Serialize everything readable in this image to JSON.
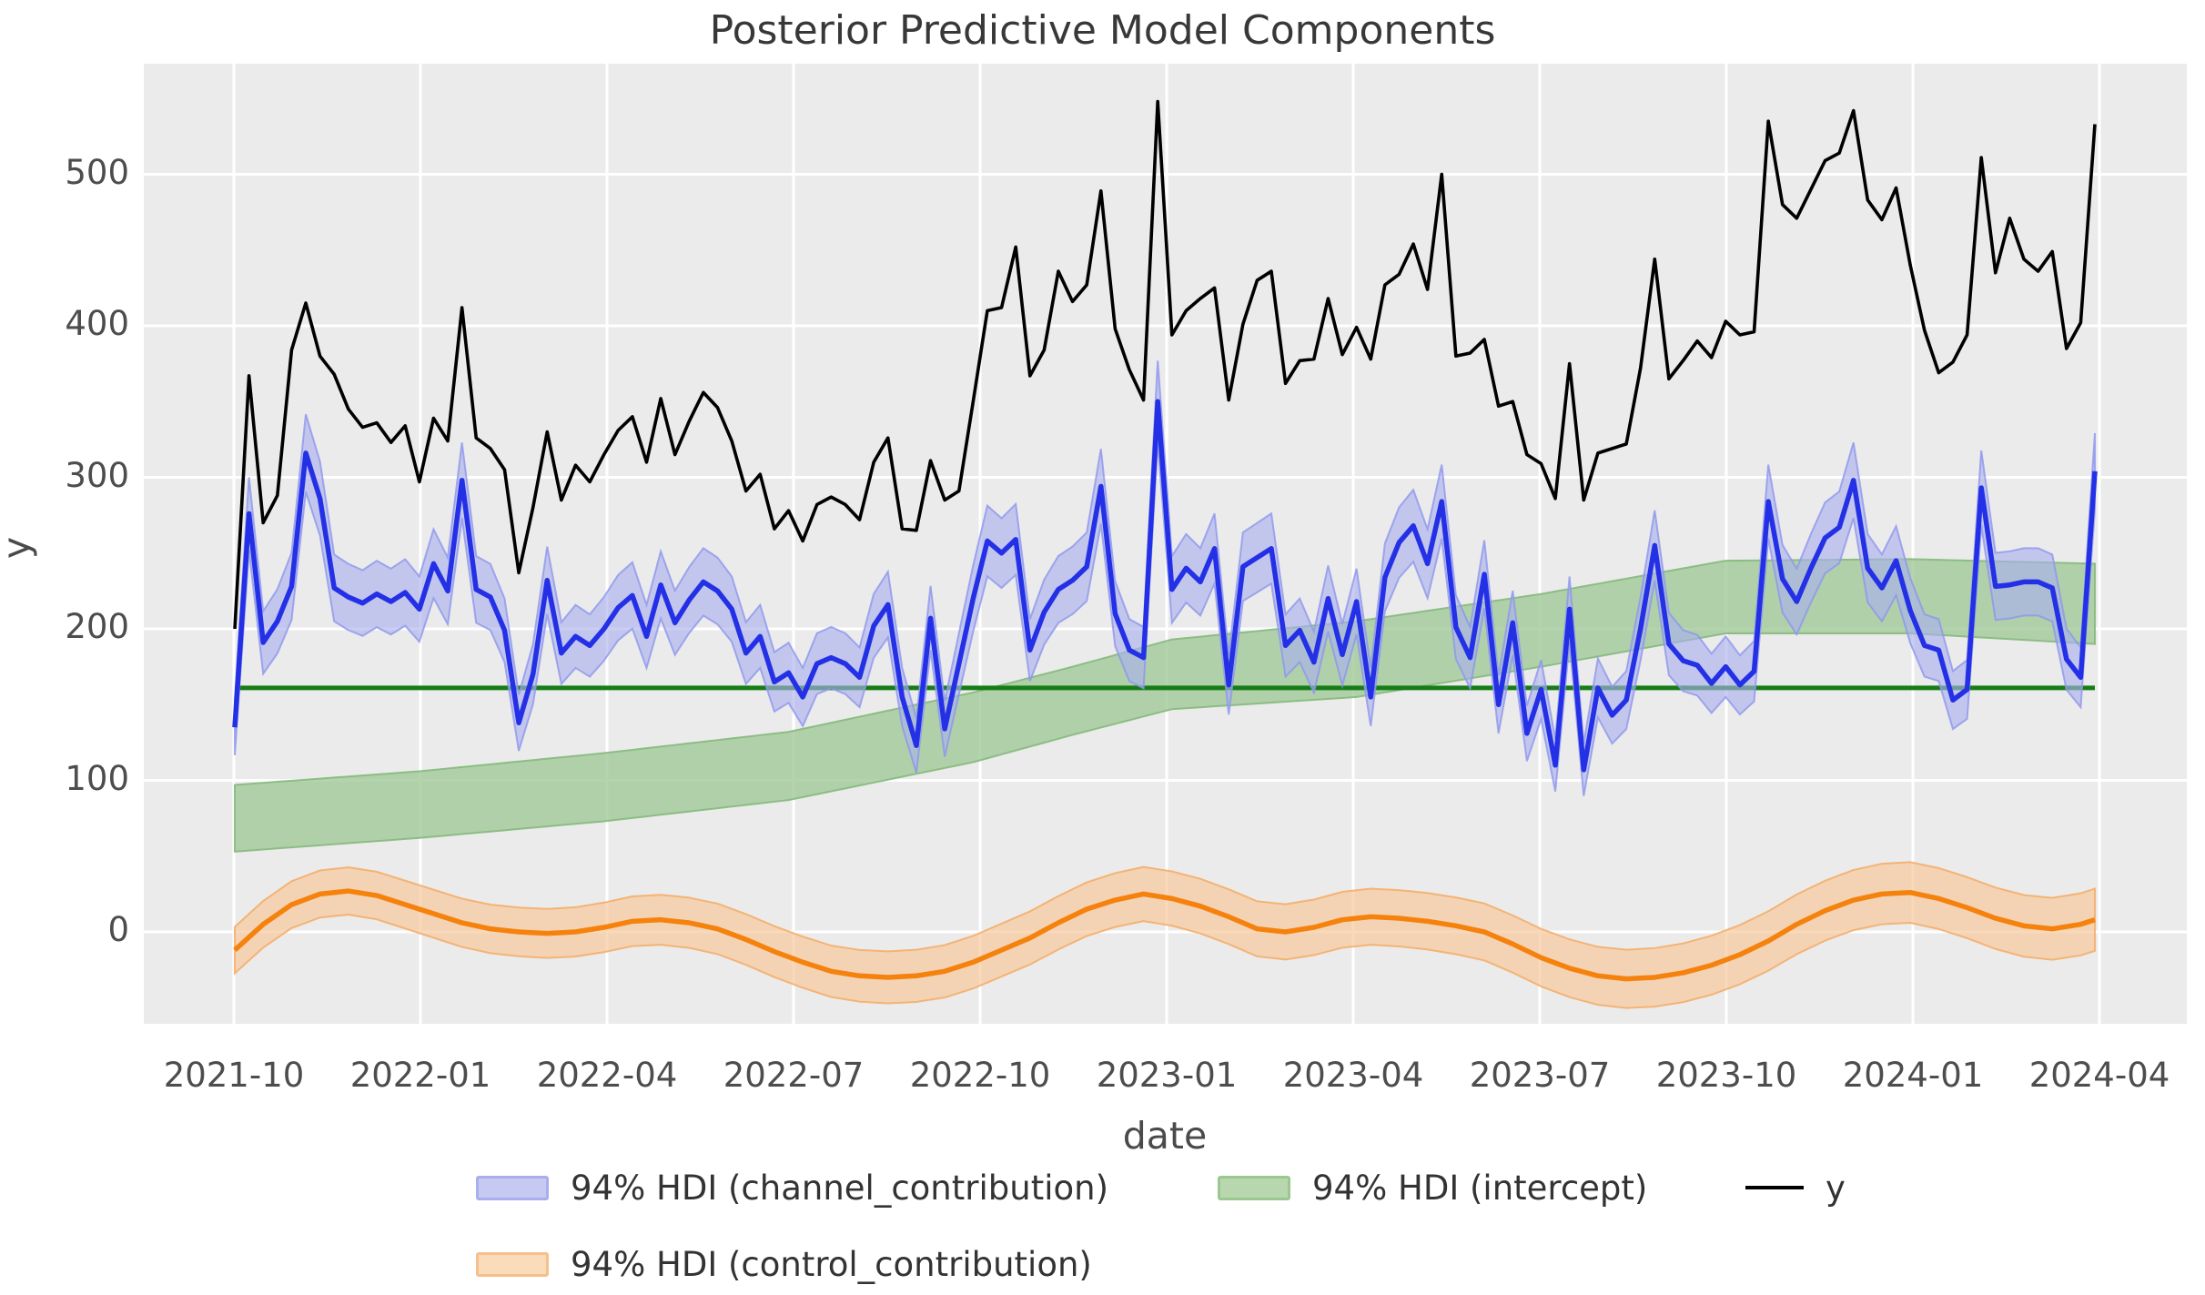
{
  "title": "Posterior Predictive Model Components",
  "xlabel": "date",
  "ylabel": "y",
  "legend": {
    "items": [
      {
        "label": "94% HDI (channel_contribution)",
        "swatch": "blue"
      },
      {
        "label": "94% HDI (control_contribution)",
        "swatch": "orange"
      },
      {
        "label": "94% HDI (intercept)",
        "swatch": "green"
      },
      {
        "label": "y",
        "swatch": "line"
      }
    ]
  },
  "colors": {
    "plot_bg": "#ebebeb",
    "grid": "#ffffff",
    "y_line": "#000000",
    "channel_line": "#2430e6",
    "channel_band_fill": "#aab0ef",
    "channel_band_edge": "#8d96ec",
    "intercept_line": "#167d16",
    "intercept_band_fill": "#9fc897",
    "intercept_band_edge": "#85b97c",
    "control_line": "#f5820d",
    "control_band_fill": "#f8c79a",
    "control_band_edge": "#f3ab66"
  },
  "axes": {
    "x_tick_labels": [
      "2021-10",
      "2022-01",
      "2022-04",
      "2022-07",
      "2022-10",
      "2023-01",
      "2023-04",
      "2023-07",
      "2023-10",
      "2024-01",
      "2024-04"
    ],
    "y_tick_labels": [
      "0",
      "100",
      "200",
      "300",
      "400",
      "500"
    ],
    "y_tick_values": [
      0,
      100,
      200,
      300,
      400,
      500
    ]
  },
  "chart_data": {
    "type": "line",
    "title": "Posterior Predictive Model Components",
    "xlabel": "date",
    "ylabel": "y",
    "x_start_date": "2021-09-26",
    "x_step_days": 7,
    "n_points": 132,
    "ylim": [
      -60,
      573
    ],
    "grid": true,
    "legend_position": "bottom",
    "series": [
      {
        "name": "y",
        "type": "line",
        "color": "#000000",
        "values": [
          200,
          367,
          270,
          288,
          384,
          415,
          380,
          368,
          345,
          333,
          336,
          323,
          334,
          297,
          339,
          324,
          412,
          326,
          319,
          305,
          237,
          280,
          330,
          285,
          308,
          297,
          315,
          331,
          340,
          310,
          352,
          315,
          337,
          356,
          346,
          324,
          291,
          302,
          266,
          278,
          258,
          282,
          287,
          282,
          272,
          310,
          326,
          266,
          265,
          311,
          285,
          291,
          350,
          410,
          412,
          452,
          367,
          384,
          436,
          416,
          427,
          489,
          398,
          371,
          351,
          548,
          394,
          410,
          418,
          425,
          351,
          401,
          430,
          436,
          362,
          377,
          378,
          418,
          381,
          399,
          378,
          427,
          434,
          454,
          424,
          500,
          380,
          382,
          391,
          347,
          350,
          315,
          309,
          286,
          375,
          285,
          316,
          319,
          322,
          372,
          444,
          365,
          377,
          390,
          379,
          403,
          394,
          396,
          535,
          480,
          471,
          490,
          509,
          514,
          542,
          483,
          470,
          491,
          440,
          397,
          369,
          376,
          394,
          511,
          435,
          471,
          444,
          436,
          449,
          385,
          402,
          533
        ]
      },
      {
        "name": "channel_contribution mean",
        "type": "line",
        "color": "#2430e6",
        "values": [
          135,
          276,
          191,
          205,
          228,
          316,
          286,
          227,
          221,
          217,
          223,
          218,
          224,
          213,
          243,
          225,
          298,
          226,
          221,
          199,
          138,
          170,
          232,
          184,
          195,
          189,
          200,
          214,
          222,
          195,
          229,
          204,
          219,
          231,
          225,
          213,
          184,
          195,
          165,
          171,
          155,
          177,
          181,
          177,
          168,
          202,
          216,
          155,
          123,
          207,
          134,
          177,
          220,
          258,
          250,
          259,
          186,
          211,
          226,
          232,
          241,
          294,
          210,
          186,
          181,
          350,
          226,
          240,
          231,
          253,
          163,
          241,
          247,
          253,
          189,
          199,
          178,
          220,
          183,
          218,
          155,
          234,
          257,
          268,
          243,
          284,
          201,
          181,
          236,
          150,
          204,
          131,
          160,
          110,
          213,
          107,
          161,
          143,
          153,
          200,
          255,
          190,
          179,
          176,
          164,
          175,
          163,
          172,
          284,
          233,
          218,
          240,
          260,
          267,
          298,
          240,
          227,
          245,
          212,
          189,
          186,
          153,
          160,
          293,
          228,
          229,
          231,
          231,
          227,
          180,
          168,
          304
        ]
      }
    ],
    "channel_hdi_band_rule": {
      "half_width_base": 13,
      "half_width_factor": 0.04
    },
    "intercept_mean_line": {
      "value": 161
    },
    "intercept_hdi_anchors": {
      "week": [
        0,
        13,
        26,
        39,
        52,
        59,
        66,
        79,
        92,
        105,
        118,
        131
      ],
      "lower": [
        53,
        62,
        73,
        87,
        112,
        130,
        147,
        155,
        175,
        197,
        197,
        190
      ],
      "upper": [
        97,
        106,
        118,
        132,
        158,
        175,
        193,
        205,
        223,
        245,
        246,
        243
      ]
    },
    "control_hdi_anchors": {
      "week": [
        0,
        2,
        4,
        6,
        8,
        10,
        12,
        14,
        16,
        18,
        20,
        22,
        24,
        26,
        28,
        30,
        32,
        34,
        36,
        38,
        40,
        42,
        44,
        46,
        48,
        50,
        52,
        54,
        56,
        58,
        60,
        62,
        64,
        66,
        68,
        70,
        72,
        74,
        76,
        78,
        80,
        82,
        84,
        86,
        88,
        90,
        92,
        94,
        96,
        98,
        100,
        102,
        104,
        106,
        108,
        110,
        112,
        114,
        116,
        118,
        120,
        122,
        124,
        126,
        128,
        130,
        131
      ],
      "value": [
        -12,
        5,
        18,
        25,
        27,
        24,
        18,
        12,
        6,
        2,
        0,
        -1,
        0,
        3,
        7,
        8,
        6,
        2,
        -5,
        -13,
        -20,
        -26,
        -29,
        -30,
        -29,
        -26,
        -20,
        -12,
        -4,
        6,
        15,
        21,
        25,
        22,
        17,
        10,
        2,
        0,
        3,
        8,
        10,
        9,
        7,
        4,
        0,
        -8,
        -17,
        -24,
        -29,
        -31,
        -30,
        -27,
        -22,
        -15,
        -6,
        5,
        14,
        21,
        25,
        26,
        22,
        16,
        9,
        4,
        2,
        5,
        8
      ],
      "half_width_base": 15.3,
      "half_width_factor": 0.04
    }
  }
}
